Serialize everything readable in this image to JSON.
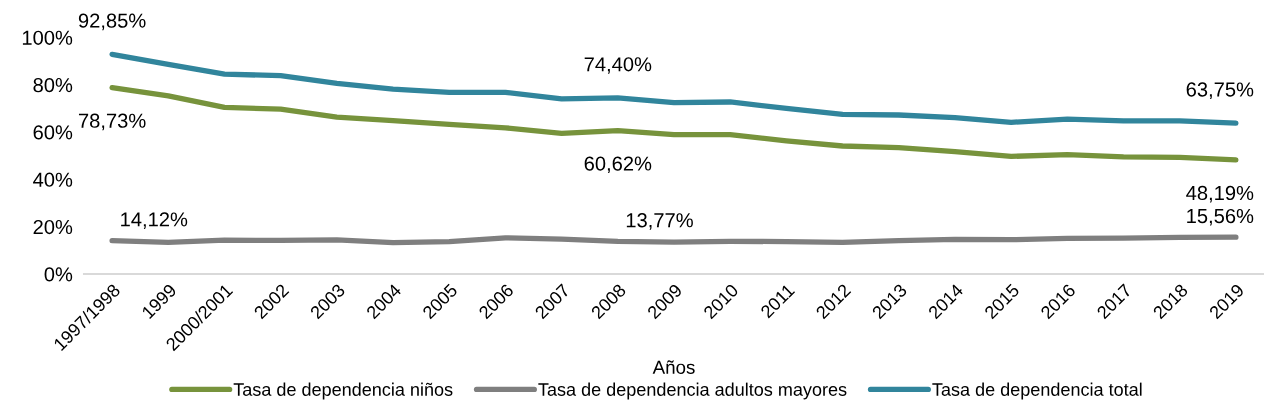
{
  "chart_data": {
    "type": "line",
    "xlabel": "Años",
    "categories": [
      "1997/1998",
      "1999",
      "2000/2001",
      "2002",
      "2003",
      "2004",
      "2005",
      "2006",
      "2007",
      "2008",
      "2009",
      "2010",
      "2011",
      "2012",
      "2013",
      "2014",
      "2015",
      "2016",
      "2017",
      "2018",
      "2019"
    ],
    "ylim": [
      0,
      100
    ],
    "yticks": [
      {
        "value": 0,
        "label": "0%"
      },
      {
        "value": 20,
        "label": "20%"
      },
      {
        "value": 40,
        "label": "40%"
      },
      {
        "value": 60,
        "label": "60%"
      },
      {
        "value": 80,
        "label": "80%"
      },
      {
        "value": 100,
        "label": "100%"
      }
    ],
    "legend": "bottom",
    "line_style": "solid",
    "series": [
      {
        "name": "Tasa de dependencia niños",
        "color": "#77933c",
        "values": [
          78.73,
          75.3,
          70.4,
          69.7,
          66.3,
          64.8,
          63.2,
          61.8,
          59.4,
          60.62,
          58.9,
          58.9,
          56.3,
          54.1,
          53.4,
          51.7,
          49.7,
          50.5,
          49.5,
          49.3,
          48.19
        ],
        "value_labels": [
          "78,73%",
          null,
          null,
          null,
          null,
          null,
          null,
          null,
          null,
          "60,62%",
          null,
          null,
          null,
          null,
          null,
          null,
          null,
          null,
          null,
          null,
          "48,19%"
        ]
      },
      {
        "name": "Tasa de dependencia adultos mayores",
        "color": "#7f7f7f",
        "values": [
          14.12,
          13.4,
          14.3,
          14.2,
          14.4,
          13.3,
          13.7,
          15.3,
          14.7,
          13.77,
          13.5,
          13.8,
          13.7,
          13.4,
          14.1,
          14.6,
          14.5,
          15.1,
          15.2,
          15.5,
          15.56
        ],
        "value_labels": [
          "14,12%",
          null,
          null,
          null,
          null,
          null,
          null,
          null,
          null,
          "13,77%",
          null,
          null,
          null,
          null,
          null,
          null,
          null,
          null,
          null,
          null,
          "15,56%"
        ]
      },
      {
        "name": "Tasa de dependencia total",
        "color": "#31859c",
        "values": [
          92.85,
          88.6,
          84.5,
          83.8,
          80.6,
          78.1,
          76.8,
          76.8,
          74.0,
          74.4,
          72.4,
          72.7,
          70.0,
          67.5,
          67.2,
          66.1,
          64.1,
          65.5,
          64.7,
          64.7,
          63.75
        ],
        "value_labels": [
          "92,85%",
          null,
          null,
          null,
          null,
          null,
          null,
          null,
          null,
          "74,40%",
          null,
          null,
          null,
          null,
          null,
          null,
          null,
          null,
          null,
          null,
          "63,75%"
        ]
      }
    ]
  }
}
